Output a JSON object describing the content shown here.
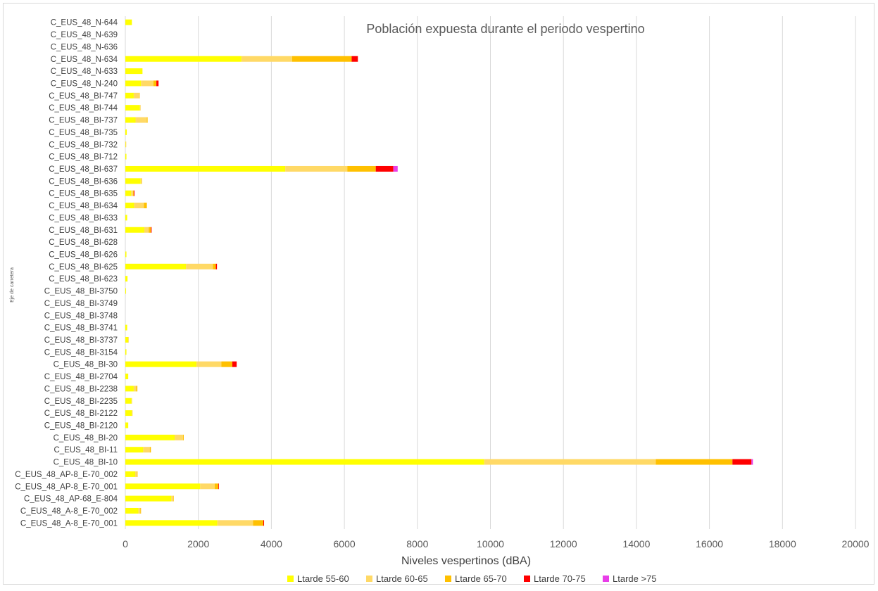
{
  "chart_data": {
    "type": "bar",
    "orientation": "horizontal",
    "stacked": true,
    "title": "Población expuesta durante el periodo vespertino",
    "xlabel": "Niveles vespertinos (dBA)",
    "ylabel": "Eje de carretera",
    "xlim": [
      0,
      20000
    ],
    "xticks": [
      0,
      2000,
      4000,
      6000,
      8000,
      10000,
      12000,
      14000,
      16000,
      18000,
      20000
    ],
    "grid": true,
    "legend_position": "bottom",
    "categories": [
      "C_EUS_48_A-8_E-70_001",
      "C_EUS_48_A-8_E-70_002",
      "C_EUS_48_AP-68_E-804",
      "C_EUS_48_AP-8_E-70_001",
      "C_EUS_48_AP-8_E-70_002",
      "C_EUS_48_BI-10",
      "C_EUS_48_BI-11",
      "C_EUS_48_BI-20",
      "C_EUS_48_BI-2120",
      "C_EUS_48_BI-2122",
      "C_EUS_48_BI-2235",
      "C_EUS_48_BI-2238",
      "C_EUS_48_BI-2704",
      "C_EUS_48_BI-30",
      "C_EUS_48_BI-3154",
      "C_EUS_48_BI-3737",
      "C_EUS_48_BI-3741",
      "C_EUS_48_BI-3748",
      "C_EUS_48_BI-3749",
      "C_EUS_48_BI-3750",
      "C_EUS_48_BI-623",
      "C_EUS_48_BI-625",
      "C_EUS_48_BI-626",
      "C_EUS_48_BI-628",
      "C_EUS_48_BI-631",
      "C_EUS_48_BI-633",
      "C_EUS_48_BI-634",
      "C_EUS_48_BI-635",
      "C_EUS_48_BI-636",
      "C_EUS_48_BI-637",
      "C_EUS_48_BI-712",
      "C_EUS_48_BI-732",
      "C_EUS_48_BI-735",
      "C_EUS_48_BI-737",
      "C_EUS_48_BI-744",
      "C_EUS_48_BI-747",
      "C_EUS_48_N-240",
      "C_EUS_48_N-633",
      "C_EUS_48_N-634",
      "C_EUS_48_N-636",
      "C_EUS_48_N-639",
      "C_EUS_48_N-644"
    ],
    "series": [
      {
        "name": "Ltarde 55-60",
        "color": "#ffff00",
        "values": [
          2520,
          360,
          1260,
          2050,
          270,
          9830,
          490,
          1350,
          80,
          180,
          170,
          230,
          80,
          1950,
          30,
          80,
          50,
          0,
          0,
          20,
          60,
          1660,
          30,
          0,
          520,
          50,
          240,
          160,
          420,
          4380,
          30,
          10,
          40,
          280,
          400,
          230,
          430,
          470,
          3180,
          0,
          0,
          180
        ]
      },
      {
        "name": "Ltarde 60-65",
        "color": "#ffd966",
        "values": [
          980,
          50,
          50,
          400,
          50,
          4700,
          180,
          230,
          0,
          20,
          10,
          70,
          0,
          680,
          0,
          10,
          0,
          0,
          0,
          0,
          0,
          740,
          0,
          0,
          120,
          0,
          270,
          50,
          20,
          1700,
          0,
          10,
          0,
          310,
          20,
          170,
          340,
          0,
          1390,
          0,
          0,
          0
        ]
      },
      {
        "name": "Ltarde 65-70",
        "color": "#ffc000",
        "values": [
          280,
          20,
          10,
          100,
          10,
          2100,
          30,
          20,
          0,
          0,
          0,
          30,
          0,
          300,
          0,
          0,
          0,
          0,
          0,
          0,
          0,
          80,
          0,
          0,
          60,
          0,
          80,
          20,
          10,
          780,
          0,
          0,
          0,
          20,
          0,
          0,
          80,
          0,
          1630,
          0,
          0,
          0
        ]
      },
      {
        "name": "Ltarde 70-75",
        "color": "#ff0000",
        "values": [
          20,
          0,
          0,
          10,
          0,
          520,
          0,
          0,
          0,
          0,
          0,
          0,
          0,
          120,
          0,
          0,
          0,
          0,
          0,
          0,
          0,
          30,
          0,
          0,
          20,
          0,
          0,
          20,
          0,
          480,
          0,
          0,
          0,
          0,
          0,
          0,
          60,
          0,
          170,
          0,
          0,
          0
        ]
      },
      {
        "name": "Ltarde >75",
        "color": "#e83ee8",
        "values": [
          0,
          0,
          0,
          0,
          0,
          40,
          0,
          0,
          0,
          0,
          0,
          0,
          0,
          0,
          0,
          0,
          0,
          0,
          0,
          0,
          0,
          0,
          0,
          0,
          0,
          0,
          0,
          0,
          0,
          120,
          0,
          0,
          0,
          0,
          0,
          0,
          0,
          0,
          0,
          0,
          0,
          0
        ]
      }
    ]
  }
}
